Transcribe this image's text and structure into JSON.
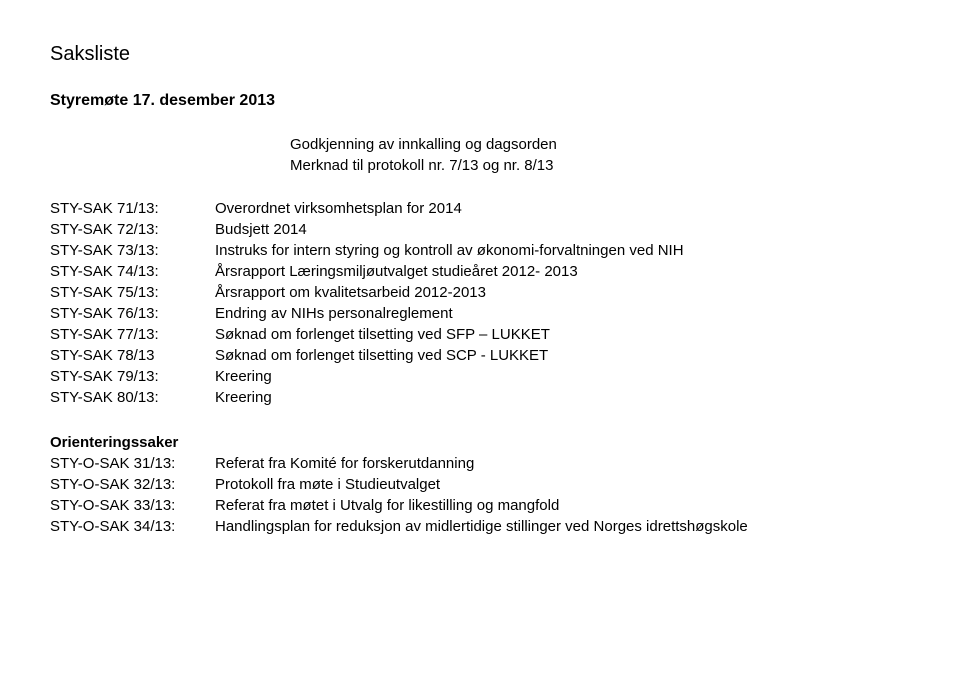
{
  "title": "Saksliste",
  "subtitle": "Styremøte 17. desember 2013",
  "intro": {
    "line1": "Godkjenning av innkalling og dagsorden",
    "line2": "Merknad til protokoll nr. 7/13 og nr. 8/13"
  },
  "cases": [
    {
      "id": "STY-SAK 71/13:",
      "desc": "Overordnet virksomhetsplan for 2014"
    },
    {
      "id": "STY-SAK 72/13:",
      "desc": "Budsjett 2014"
    },
    {
      "id": "STY-SAK 73/13:",
      "desc": "Instruks for intern styring og kontroll av økonomi-forvaltningen ved NIH"
    },
    {
      "id": "STY-SAK 74/13:",
      "desc": "Årsrapport Læringsmiljøutvalget studieåret 2012- 2013"
    },
    {
      "id": "STY-SAK 75/13:",
      "desc": "Årsrapport om kvalitetsarbeid 2012-2013"
    },
    {
      "id": "STY-SAK 76/13:",
      "desc": "Endring av NIHs personalreglement"
    },
    {
      "id": "STY-SAK 77/13:",
      "desc": "Søknad om forlenget tilsetting ved SFP – LUKKET"
    },
    {
      "id": "STY-SAK 78/13",
      "desc": "Søknad om forlenget tilsetting ved SCP - LUKKET"
    },
    {
      "id": "STY-SAK 79/13:",
      "desc": "Kreering"
    },
    {
      "id": "STY-SAK 80/13:",
      "desc": "Kreering"
    }
  ],
  "orienteringHeader": "Orienteringssaker",
  "orientering": [
    {
      "id": "STY-O-SAK 31/13:",
      "desc": "Referat fra Komité for forskerutdanning"
    },
    {
      "id": "STY-O-SAK 32/13:",
      "desc": "Protokoll fra møte i Studieutvalget"
    },
    {
      "id": "STY-O-SAK 33/13:",
      "desc": "Referat fra møtet i Utvalg for likestilling og mangfold"
    },
    {
      "id": "STY-O-SAK 34/13:",
      "desc": "Handlingsplan for reduksjon av midlertidige stillinger ved Norges idrettshøgskole"
    }
  ]
}
